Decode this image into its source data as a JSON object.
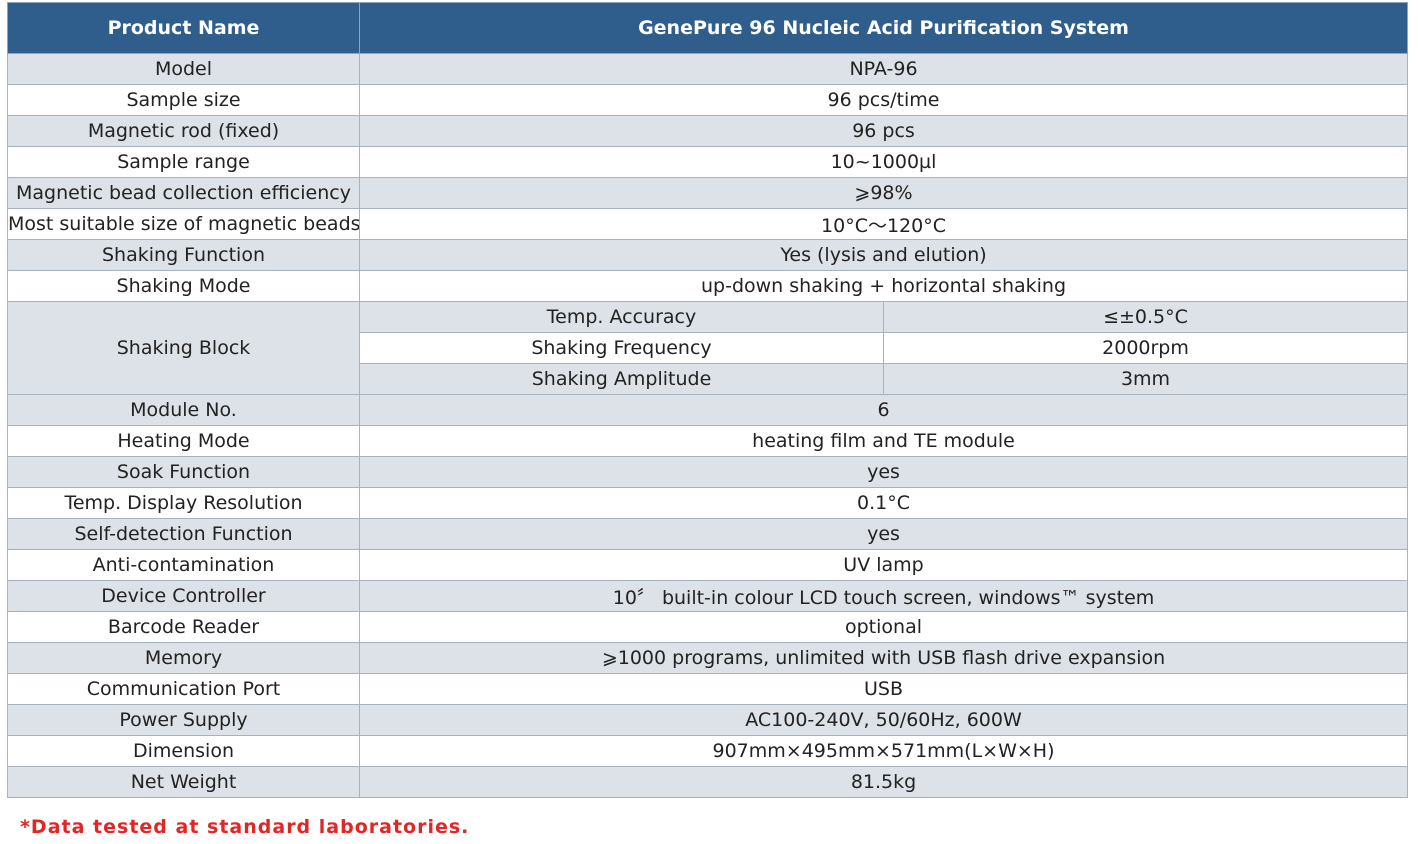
{
  "header": {
    "left": "Product Name",
    "right": "GenePure 96 Nucleic Acid Purification System"
  },
  "rows_top": [
    {
      "label": "Model",
      "value": "NPA-96"
    },
    {
      "label": "Sample size",
      "value": "96 pcs/time"
    },
    {
      "label": "Magnetic rod (fixed)",
      "value": "96 pcs"
    },
    {
      "label": "Sample range",
      "value": "10~1000µl"
    },
    {
      "label": "Magnetic bead collection efficiency",
      "value": "⩾98%"
    },
    {
      "label": "Most suitable size of magnetic beads",
      "value": "10°C～120°C"
    },
    {
      "label": "Shaking Function",
      "value": "Yes (lysis and elution)"
    },
    {
      "label": "Shaking Mode",
      "value": "up-down shaking + horizontal shaking"
    }
  ],
  "shaking_block": {
    "label": "Shaking Block",
    "items": [
      {
        "param": "Temp. Accuracy",
        "value": "≤±0.5°C"
      },
      {
        "param": "Shaking Frequency",
        "value": "2000rpm"
      },
      {
        "param": "Shaking Amplitude",
        "value": "3mm"
      }
    ]
  },
  "rows_bottom": [
    {
      "label": "Module No.",
      "value": "6"
    },
    {
      "label": "Heating Mode",
      "value": "heating film and TE module"
    },
    {
      "label": "Soak Function",
      "value": "yes"
    },
    {
      "label": "Temp. Display Resolution",
      "value": "0.1°C"
    },
    {
      "label": "Self-detection Function",
      "value": "yes"
    },
    {
      "label": "Anti-contamination",
      "value": "UV lamp"
    },
    {
      "label": "Device Controller",
      "value": "10〞 built-in colour LCD touch screen, windows™ system"
    },
    {
      "label": "Barcode Reader",
      "value": "optional"
    },
    {
      "label": "Memory",
      "value": "⩾1000 programs, unlimited with USB flash drive expansion"
    },
    {
      "label": "Communication Port",
      "value": "USB"
    },
    {
      "label": "Power Supply",
      "value": "AC100-240V, 50/60Hz, 600W"
    },
    {
      "label": "Dimension",
      "value": "907mm×495mm×571mm(L×W×H)"
    },
    {
      "label": "Net Weight",
      "value": "81.5kg"
    }
  ],
  "footnote": "*Data tested at standard laboratories.",
  "colors": {
    "header_bg": "#2f5d8c",
    "row_shade": "#dde2e8",
    "row_plain": "#ffffff",
    "footnote": "#e12626"
  }
}
